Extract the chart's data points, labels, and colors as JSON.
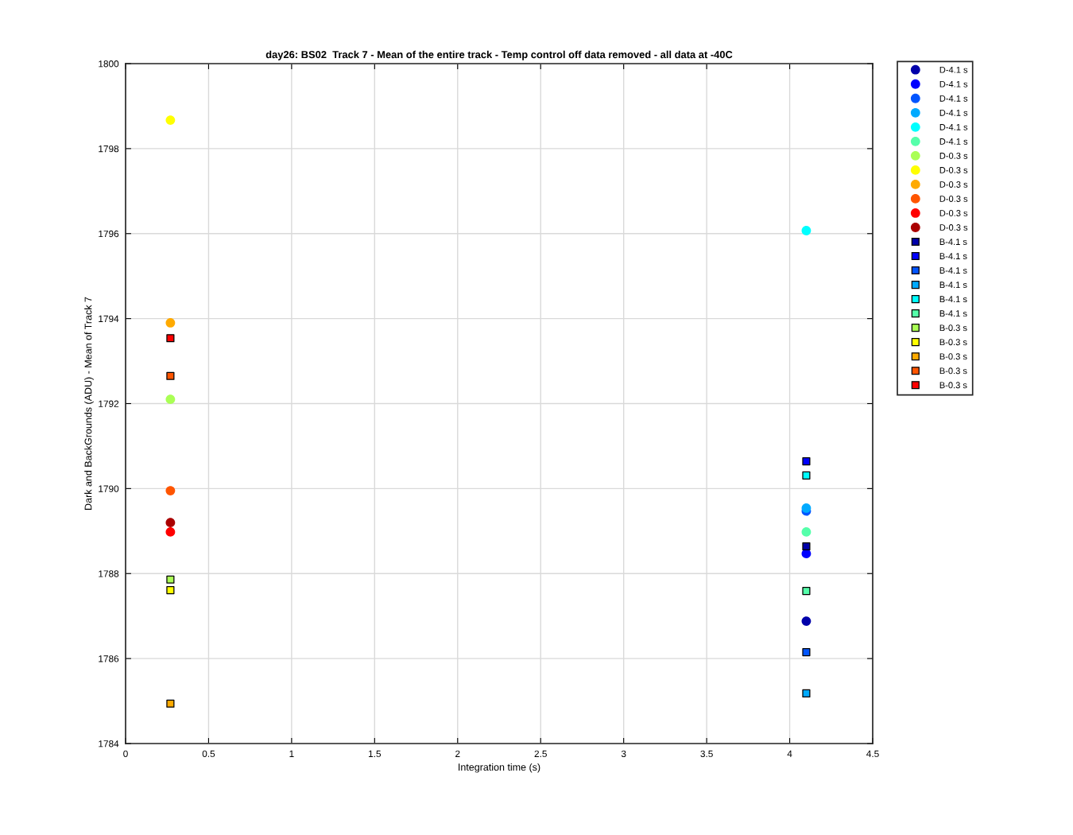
{
  "chart_data": {
    "type": "scatter",
    "title": "day26: BS02  Track 7 - Mean of the entire track - Temp control off data removed - all data at -40C",
    "xlabel": "Integration time (s)",
    "ylabel": "Dark and BackGrounds (ADU) - Mean of Track 7",
    "x": [
      0.27,
      4.1
    ],
    "xlim": [
      0,
      4.5
    ],
    "xticks": [
      0,
      0.5,
      1,
      1.5,
      2,
      2.5,
      3,
      3.5,
      4,
      4.5
    ],
    "ylim": [
      1784,
      1800
    ],
    "yticks": [
      1784,
      1786,
      1788,
      1790,
      1792,
      1794,
      1796,
      1798,
      1800
    ],
    "grid": true,
    "legend": "top right",
    "series": [
      {
        "name": "D-4.1 s",
        "color": "#0000aa",
        "marker": "circle",
        "values": [
          null,
          1786.88
        ]
      },
      {
        "name": "D-4.1 s",
        "color": "#0000ff",
        "marker": "circle",
        "values": [
          null,
          1788.47
        ]
      },
      {
        "name": "D-4.1 s",
        "color": "#0055ff",
        "marker": "circle",
        "values": [
          null,
          1789.47
        ]
      },
      {
        "name": "D-4.1 s",
        "color": "#00aaff",
        "marker": "circle",
        "values": [
          null,
          1789.54
        ]
      },
      {
        "name": "D-4.1 s",
        "color": "#00ffff",
        "marker": "circle",
        "values": [
          null,
          1796.07
        ]
      },
      {
        "name": "D-4.1 s",
        "color": "#55ffaa",
        "marker": "circle",
        "values": [
          null,
          1788.98
        ]
      },
      {
        "name": "D-0.3 s",
        "color": "#aaff55",
        "marker": "circle",
        "values": [
          1792.1,
          null
        ]
      },
      {
        "name": "D-0.3 s",
        "color": "#ffff00",
        "marker": "circle",
        "values": [
          1798.67,
          null
        ]
      },
      {
        "name": "D-0.3 s",
        "color": "#ffaa00",
        "marker": "circle",
        "values": [
          1793.9,
          null
        ]
      },
      {
        "name": "D-0.3 s",
        "color": "#ff5500",
        "marker": "circle",
        "values": [
          1789.95,
          null
        ]
      },
      {
        "name": "D-0.3 s",
        "color": "#ff0000",
        "marker": "circle",
        "values": [
          1788.98,
          null
        ]
      },
      {
        "name": "D-0.3 s",
        "color": "#aa0000",
        "marker": "circle",
        "values": [
          1789.2,
          null
        ]
      },
      {
        "name": "B-4.1 s",
        "color": "#0000aa",
        "marker": "square",
        "values": [
          null,
          1788.64
        ]
      },
      {
        "name": "B-4.1 s",
        "color": "#0000ff",
        "marker": "square",
        "values": [
          null,
          1790.64
        ]
      },
      {
        "name": "B-4.1 s",
        "color": "#0055ff",
        "marker": "square",
        "values": [
          null,
          1786.15
        ]
      },
      {
        "name": "B-4.1 s",
        "color": "#00aaff",
        "marker": "square",
        "values": [
          null,
          1785.18
        ]
      },
      {
        "name": "B-4.1 s",
        "color": "#00ffff",
        "marker": "square",
        "values": [
          null,
          1790.31
        ]
      },
      {
        "name": "B-4.1 s",
        "color": "#55ffaa",
        "marker": "square",
        "values": [
          null,
          1787.59
        ]
      },
      {
        "name": "B-0.3 s",
        "color": "#aaff55",
        "marker": "square",
        "values": [
          1787.86,
          null
        ]
      },
      {
        "name": "B-0.3 s",
        "color": "#ffff00",
        "marker": "square",
        "values": [
          1787.61,
          null
        ]
      },
      {
        "name": "B-0.3 s",
        "color": "#ffaa00",
        "marker": "square",
        "values": [
          1784.94,
          null
        ]
      },
      {
        "name": "B-0.3 s",
        "color": "#ff5500",
        "marker": "square",
        "values": [
          1792.65,
          null
        ]
      },
      {
        "name": "B-0.3 s",
        "color": "#ff0000",
        "marker": "square",
        "values": [
          1793.54,
          null
        ]
      }
    ]
  }
}
